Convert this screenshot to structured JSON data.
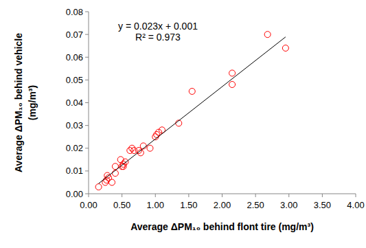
{
  "chart_data": {
    "type": "scatter",
    "x_label": "Average ΔPM₁₀ behind flont tire (mg/m³)",
    "y_label": [
      "Average ΔPM₁₀ behind vehicle",
      "(mg/m³)"
    ],
    "annotations": [
      "y = 0.023x + 0.001",
      "R² = 0.973"
    ],
    "xlim": [
      0,
      4
    ],
    "ylim": [
      0,
      0.08
    ],
    "xticks": [
      {
        "value": 0,
        "label": "0.00"
      },
      {
        "value": 0.5,
        "label": "0.50"
      },
      {
        "value": 1,
        "label": "1.00"
      },
      {
        "value": 1.5,
        "label": "1.50"
      },
      {
        "value": 2,
        "label": "2.00"
      },
      {
        "value": 2.5,
        "label": "2.50"
      },
      {
        "value": 3,
        "label": "3.00"
      },
      {
        "value": 3.5,
        "label": "3.50"
      },
      {
        "value": 4,
        "label": "4.00"
      }
    ],
    "yticks": [
      {
        "value": 0,
        "label": "0.00"
      },
      0.01,
      0.02,
      0.03,
      0.04,
      0.05,
      0.06,
      0.07,
      0.08
    ],
    "grid": false,
    "series": [
      {
        "type": "scatter",
        "marker": "circle",
        "color": "#ff0000",
        "x": [
          0.15,
          0.25,
          0.27,
          0.28,
          0.3,
          0.35,
          0.4,
          0.4,
          0.48,
          0.5,
          0.52,
          0.52,
          0.55,
          0.62,
          0.65,
          0.68,
          0.75,
          0.78,
          0.82,
          0.92,
          1.0,
          1.02,
          1.05,
          1.1,
          1.35,
          1.55,
          2.15,
          2.15,
          2.68,
          2.95
        ],
        "values": [
          0.003,
          0.005,
          0.006,
          0.008,
          0.007,
          0.005,
          0.009,
          0.012,
          0.015,
          0.012,
          0.012,
          0.013,
          0.014,
          0.019,
          0.02,
          0.019,
          0.019,
          0.018,
          0.021,
          0.02,
          0.025,
          0.026,
          0.027,
          0.028,
          0.031,
          0.045,
          0.048,
          0.053,
          0.07,
          0.064
        ]
      },
      {
        "type": "line",
        "line_style": "solid",
        "color": "#000000",
        "x": [
          0.15,
          2.95
        ],
        "values": [
          0.0045,
          0.0689
        ]
      }
    ]
  }
}
